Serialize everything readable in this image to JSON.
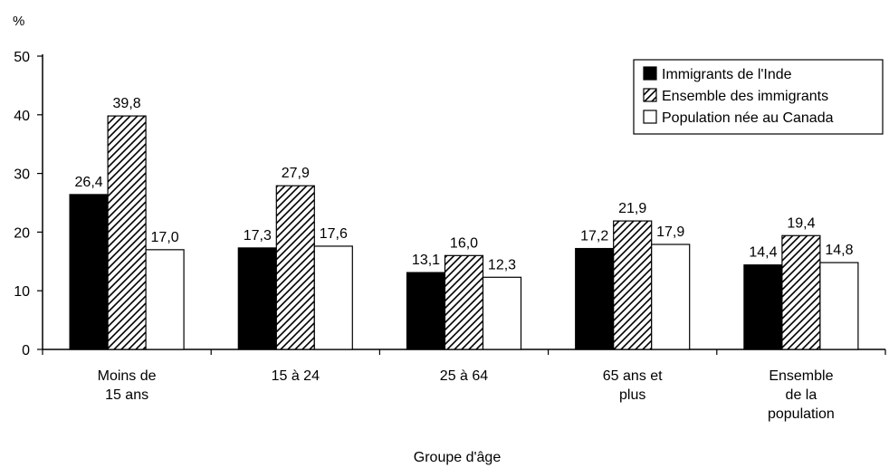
{
  "chart_data": {
    "type": "bar",
    "title": "",
    "ylabel": "%",
    "xlabel": "Groupe d'âge",
    "ylim": [
      0,
      50
    ],
    "yticks": [
      0,
      10,
      20,
      30,
      40,
      50
    ],
    "categories": [
      [
        "Moins de",
        "15 ans"
      ],
      [
        "15 à 24"
      ],
      [
        "25 à 64"
      ],
      [
        "65 ans et",
        "plus"
      ],
      [
        "Ensemble",
        "de la",
        "population"
      ]
    ],
    "series": [
      {
        "name": "Immigrants de l'Inde",
        "style": "solid-black",
        "values": [
          26.4,
          17.3,
          13.1,
          17.2,
          14.4
        ],
        "labels": [
          "26,4",
          "17,3",
          "13,1",
          "17,2",
          "14,4"
        ]
      },
      {
        "name": "Ensemble des immigrants",
        "style": "hatched",
        "values": [
          39.8,
          27.9,
          16.0,
          21.9,
          19.4
        ],
        "labels": [
          "39,8",
          "27,9",
          "16,0",
          "21,9",
          "19,4"
        ]
      },
      {
        "name": "Population née au Canada",
        "style": "white",
        "values": [
          17.0,
          17.6,
          12.3,
          17.9,
          14.8
        ],
        "labels": [
          "17,0",
          "17,6",
          "12,3",
          "17,9",
          "14,8"
        ]
      }
    ],
    "legend_position": "top-right",
    "grid": false,
    "colors": {
      "solid": "#000000",
      "hatch": "#000000",
      "background": "#ffffff"
    }
  }
}
